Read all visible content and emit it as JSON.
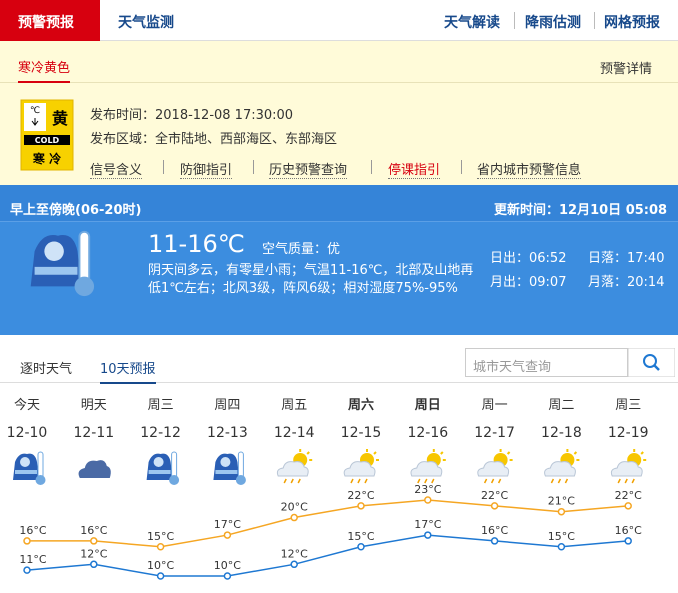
{
  "nav": {
    "tabs": [
      "预警预报",
      "天气监测"
    ],
    "links": [
      "天气解读",
      "降雨估测",
      "网格预报"
    ]
  },
  "warning": {
    "tab": "寒冷黄色",
    "detail_link": "预警详情",
    "icon_texts": [
      "℃",
      "黄",
      "COLD",
      "寒 冷"
    ],
    "publish_time": "发布时间：2018-12-08 17:30:00",
    "publish_area": "发布区域：全市陆地、西部海区、东部海区",
    "links": [
      "信号含义",
      "防御指引",
      "历史预警查询",
      "停课指引",
      "省内城市预警信息"
    ]
  },
  "today": {
    "period": "早上至傍晚(06-20时)",
    "updated": "更新时间：12月10日 05:08",
    "temperature": "11-16℃",
    "air_quality": "空气质量：优",
    "description": "阴天间多云，有零星小雨；气温11-16℃，北部及山地再低1℃左右；北风3级，阵风6级；相对湿度75%-95%",
    "sun_moon": [
      "日出：06:52",
      "日落：17:40",
      "月出：09:07",
      "月落：20:14"
    ]
  },
  "forecast_tabs": [
    "逐时天气",
    "10天预报"
  ],
  "search_placeholder": "城市天气查询",
  "chart_data": {
    "type": "line",
    "weekdays": [
      "今天",
      "明天",
      "周三",
      "周四",
      "周五",
      "周六",
      "周日",
      "周一",
      "周二",
      "周三"
    ],
    "categories": [
      "12-10",
      "12-11",
      "12-12",
      "12-13",
      "12-14",
      "12-15",
      "12-16",
      "12-17",
      "12-18",
      "12-19"
    ],
    "series": [
      {
        "color": "#f5a623",
        "values": [
          16,
          16,
          15,
          17,
          20,
          22,
          23,
          22,
          21,
          22
        ],
        "value_labels": [
          "16°C",
          "16°C",
          "15°C",
          "17°C",
          "20°C",
          "22°C",
          "23°C",
          "22°C",
          "21°C",
          "22°C"
        ]
      },
      {
        "color": "#1e78d2",
        "values": [
          11,
          12,
          10,
          10,
          12,
          15,
          17,
          16,
          15,
          16
        ],
        "value_labels": [
          "11°C",
          "12°C",
          "10°C",
          "10°C",
          "12°C",
          "15°C",
          "17°C",
          "16°C",
          "15°C",
          "16°C"
        ]
      }
    ]
  }
}
